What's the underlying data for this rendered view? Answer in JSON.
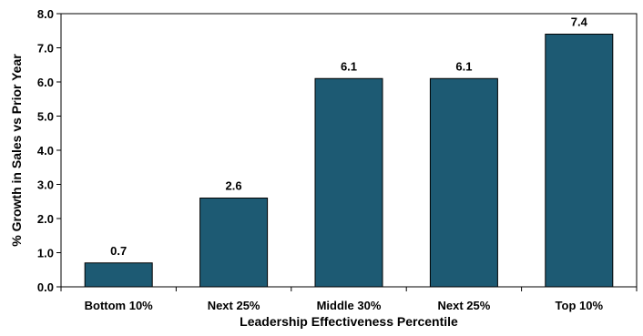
{
  "chart_data": {
    "type": "bar",
    "title": "",
    "xlabel": "Leadership Effectiveness Percentile",
    "ylabel": "% Growth in Sales vs Prior Year",
    "categories": [
      "Bottom 10%",
      "Next 25%",
      "Middle 30%",
      "Next 25%",
      "Top 10%"
    ],
    "values": [
      0.7,
      2.6,
      6.1,
      6.1,
      7.4
    ],
    "data_labels": [
      "0.7",
      "2.6",
      "6.1",
      "6.1",
      "7.4"
    ],
    "ylim": [
      0,
      8
    ],
    "yticks": [
      "0.0",
      "1.0",
      "2.0",
      "3.0",
      "4.0",
      "5.0",
      "6.0",
      "7.0",
      "8.0"
    ],
    "bar_color": "#1d5a73",
    "grid": false,
    "legend": "none"
  }
}
